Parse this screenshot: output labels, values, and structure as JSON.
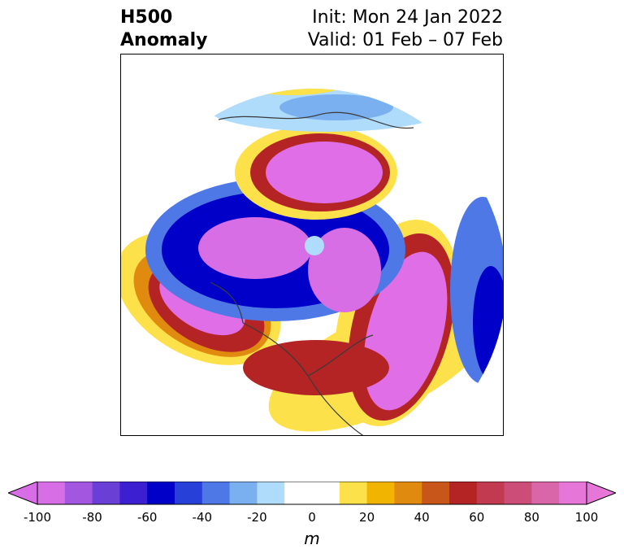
{
  "title": {
    "left_line1": "H500",
    "left_line2": "Anomaly",
    "right_line1": "Init: Mon 24 Jan 2022",
    "right_line2": "Valid: 01 Feb – 07 Feb"
  },
  "colorbar": {
    "unit": "m",
    "ticks": [
      "-100",
      "-80",
      "-60",
      "-40",
      "-20",
      "0",
      "20",
      "40",
      "60",
      "80",
      "100"
    ],
    "colors": [
      "#d86ee6",
      "#a356e0",
      "#6a3fd6",
      "#3c1fd0",
      "#0000c8",
      "#2640d8",
      "#4e78e6",
      "#7ab0f0",
      "#aedcfa",
      "#ffffff",
      "#ffffff",
      "#fde14a",
      "#f1b400",
      "#e08a10",
      "#c8561a",
      "#b42424",
      "#c23a50",
      "#cc4e78",
      "#d866a8",
      "#e676d8"
    ]
  },
  "map_colors": {
    "magenta": "#e06ee6",
    "purple": "#d86ee6",
    "deep_blue": "#0000c8",
    "blue": "#4e78e6",
    "light_blue": "#aedcfa",
    "red": "#b42424",
    "orange": "#e08a10",
    "yellow": "#fde14a"
  }
}
